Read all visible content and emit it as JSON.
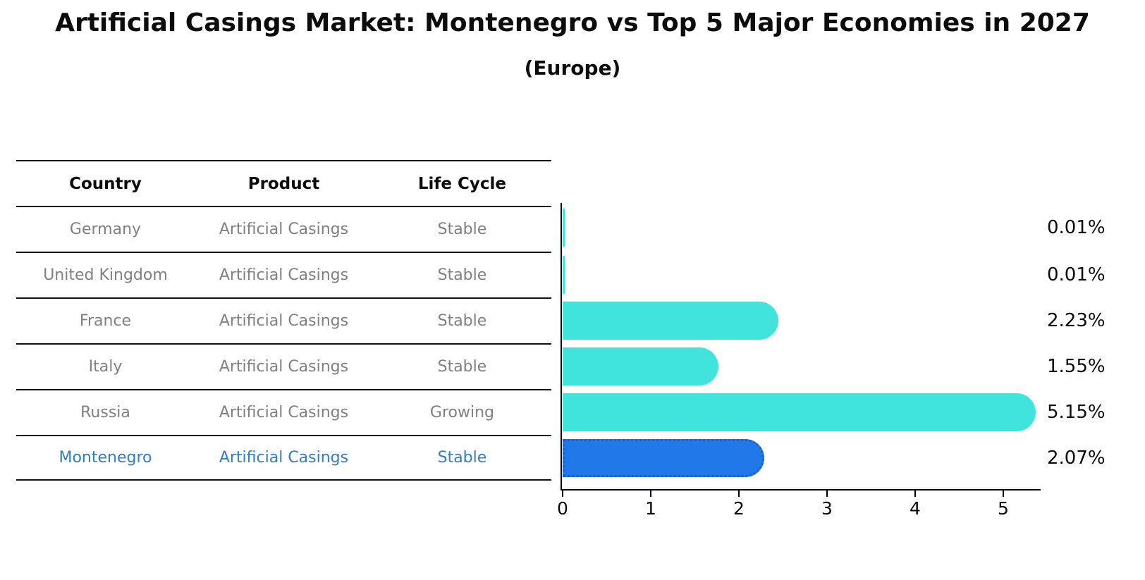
{
  "title": "Artificial Casings Market: Montenegro vs Top 5 Major Economies in 2027",
  "subtitle": "(Europe)",
  "table": {
    "headers": {
      "country": "Country",
      "product": "Product",
      "life_cycle": "Life Cycle"
    },
    "rows": [
      {
        "country": "Germany",
        "product": "Artificial Casings",
        "life_cycle": "Stable"
      },
      {
        "country": "United Kingdom",
        "product": "Artificial Casings",
        "life_cycle": "Stable"
      },
      {
        "country": "France",
        "product": "Artificial Casings",
        "life_cycle": "Stable"
      },
      {
        "country": "Italy",
        "product": "Artificial Casings",
        "life_cycle": "Stable"
      },
      {
        "country": "Russia",
        "product": "Artificial Casings",
        "life_cycle": "Growing"
      },
      {
        "country": "Montenegro",
        "product": "Artificial Casings",
        "life_cycle": "Stable"
      }
    ],
    "highlight_row_index": 5
  },
  "chart_data": {
    "type": "bar",
    "orientation": "horizontal",
    "title": "Artificial Casings Market: Montenegro vs Top 5 Major Economies in 2027 (Europe)",
    "categories": [
      "Germany",
      "United Kingdom",
      "France",
      "Italy",
      "Russia",
      "Montenegro"
    ],
    "values": [
      0.01,
      0.01,
      2.23,
      1.55,
      5.15,
      2.07
    ],
    "value_labels": [
      "0.01%",
      "0.01%",
      "2.23%",
      "1.55%",
      "5.15%",
      "2.07%"
    ],
    "unit": "%",
    "x_ticks": [
      "0",
      "1",
      "2",
      "3",
      "4",
      "5"
    ],
    "xlim": [
      0,
      5.45
    ],
    "grid": false,
    "legend": "none",
    "highlight_index": 5
  },
  "colors": {
    "bar": "#40E4DC",
    "highlight-bar": "#2178E8",
    "highlight-border": "#1b60c8",
    "highlight-text": "#2E7EC8",
    "muted-text": "#808080",
    "axis": "#000000"
  }
}
